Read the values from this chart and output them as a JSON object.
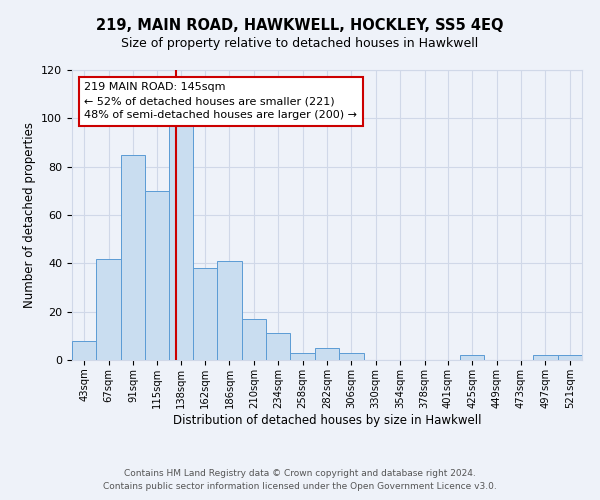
{
  "title": "219, MAIN ROAD, HAWKWELL, HOCKLEY, SS5 4EQ",
  "subtitle": "Size of property relative to detached houses in Hawkwell",
  "xlabel": "Distribution of detached houses by size in Hawkwell",
  "ylabel": "Number of detached properties",
  "bin_labels": [
    "43sqm",
    "67sqm",
    "91sqm",
    "115sqm",
    "138sqm",
    "162sqm",
    "186sqm",
    "210sqm",
    "234sqm",
    "258sqm",
    "282sqm",
    "306sqm",
    "330sqm",
    "354sqm",
    "378sqm",
    "401sqm",
    "425sqm",
    "449sqm",
    "473sqm",
    "497sqm",
    "521sqm"
  ],
  "bin_edges": [
    43,
    67,
    91,
    115,
    138,
    162,
    186,
    210,
    234,
    258,
    282,
    306,
    330,
    354,
    378,
    401,
    425,
    449,
    473,
    497,
    521
  ],
  "bar_heights": [
    8,
    42,
    85,
    70,
    100,
    38,
    41,
    17,
    11,
    3,
    5,
    3,
    0,
    0,
    0,
    0,
    2,
    0,
    0,
    2,
    2
  ],
  "bar_color": "#c9ddf0",
  "bar_edge_color": "#5b9bd5",
  "property_size": 145,
  "vline_color": "#cc0000",
  "annotation_text": "219 MAIN ROAD: 145sqm\n← 52% of detached houses are smaller (221)\n48% of semi-detached houses are larger (200) →",
  "annotation_box_color": "#ffffff",
  "annotation_box_edge_color": "#cc0000",
  "ylim": [
    0,
    120
  ],
  "grid_color": "#d0d8e8",
  "footer_line1": "Contains HM Land Registry data © Crown copyright and database right 2024.",
  "footer_line2": "Contains public sector information licensed under the Open Government Licence v3.0.",
  "background_color": "#eef2f9"
}
